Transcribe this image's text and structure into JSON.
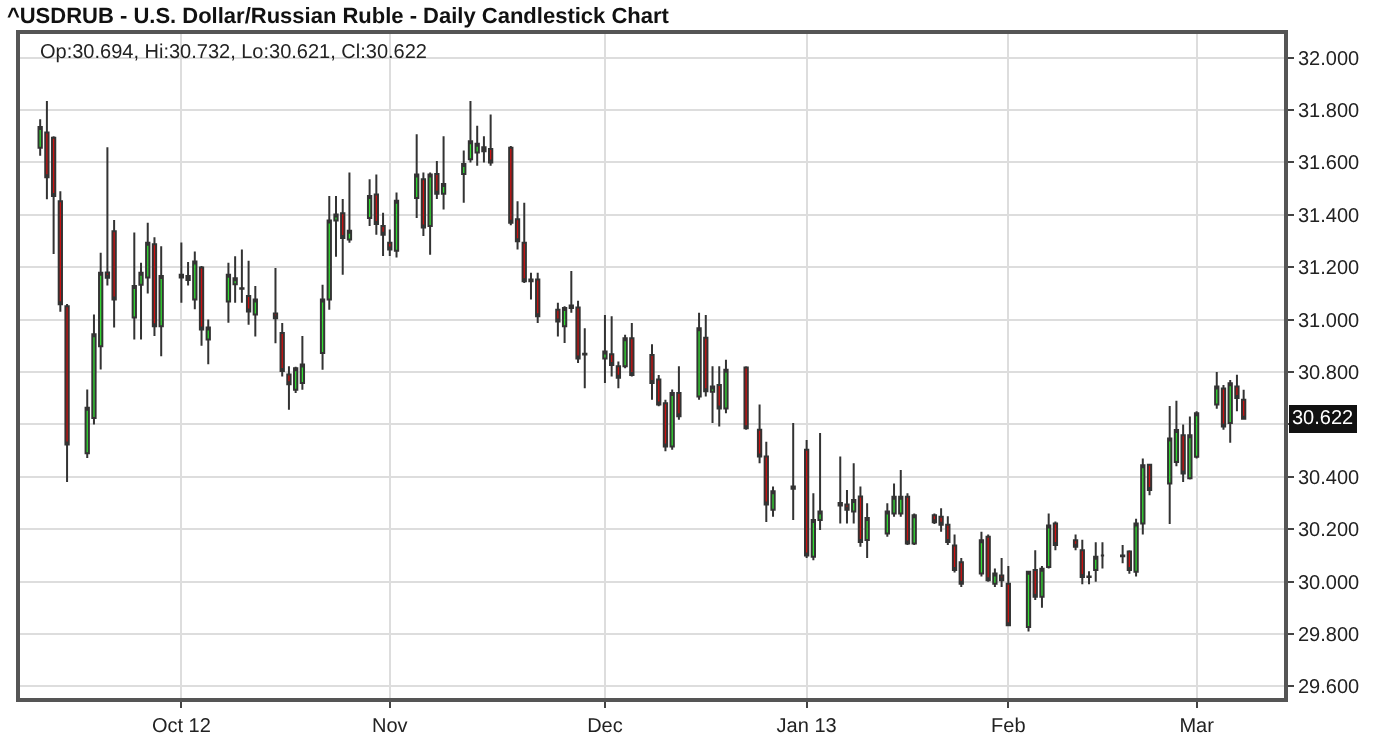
{
  "chart_data": {
    "type": "candlestick",
    "title": "^USDRUB - U.S. Dollar/Russian Ruble - Daily Candlestick Chart",
    "annotations": [
      "Op:30.694, Hi:30.732, Lo:30.621, Cl:30.622",
      {
        "text": "30.622",
        "x": "2013-03-08",
        "y": 30.622
      }
    ],
    "x": [
      "2012-09-10",
      "2012-09-11",
      "2012-09-12",
      "2012-09-13",
      "2012-09-14",
      "2012-09-17",
      "2012-09-18",
      "2012-09-19",
      "2012-09-20",
      "2012-09-21",
      "2012-09-24",
      "2012-09-25",
      "2012-09-26",
      "2012-09-27",
      "2012-09-28",
      "2012-10-01",
      "2012-10-02",
      "2012-10-03",
      "2012-10-04",
      "2012-10-05",
      "2012-10-08",
      "2012-10-09",
      "2012-10-10",
      "2012-10-11",
      "2012-10-12",
      "2012-10-15",
      "2012-10-16",
      "2012-10-17",
      "2012-10-18",
      "2012-10-19",
      "2012-10-22",
      "2012-10-23",
      "2012-10-24",
      "2012-10-25",
      "2012-10-26",
      "2012-10-29",
      "2012-10-30",
      "2012-10-31",
      "2012-11-01",
      "2012-11-02",
      "2012-11-05",
      "2012-11-06",
      "2012-11-07",
      "2012-11-08",
      "2012-11-09",
      "2012-11-12",
      "2012-11-13",
      "2012-11-14",
      "2012-11-15",
      "2012-11-16",
      "2012-11-19",
      "2012-11-20",
      "2012-11-21",
      "2012-11-22",
      "2012-11-23",
      "2012-11-26",
      "2012-11-27",
      "2012-11-28",
      "2012-11-29",
      "2012-11-30",
      "2012-12-03",
      "2012-12-04",
      "2012-12-05",
      "2012-12-06",
      "2012-12-07",
      "2012-12-10",
      "2012-12-11",
      "2012-12-12",
      "2012-12-13",
      "2012-12-14",
      "2012-12-17",
      "2012-12-18",
      "2012-12-19",
      "2012-12-20",
      "2012-12-21",
      "2012-12-24",
      "2012-12-26",
      "2012-12-27",
      "2012-12-28",
      "2012-12-31",
      "2013-01-02",
      "2013-01-03",
      "2013-01-04",
      "2013-01-07",
      "2013-01-08",
      "2013-01-09",
      "2013-01-10",
      "2013-01-11",
      "2013-01-14",
      "2013-01-15",
      "2013-01-16",
      "2013-01-17",
      "2013-01-18",
      "2013-01-21",
      "2013-01-22",
      "2013-01-23",
      "2013-01-24",
      "2013-01-25",
      "2013-01-28",
      "2013-01-29",
      "2013-01-30",
      "2013-01-31",
      "2013-02-01",
      "2013-02-04",
      "2013-02-05",
      "2013-02-06",
      "2013-02-07",
      "2013-02-08",
      "2013-02-11",
      "2013-02-12",
      "2013-02-13",
      "2013-02-14",
      "2013-02-15",
      "2013-02-18",
      "2013-02-19",
      "2013-02-20",
      "2013-02-21",
      "2013-02-22",
      "2013-02-25",
      "2013-02-26",
      "2013-02-27",
      "2013-02-28",
      "2013-03-01",
      "2013-03-04",
      "2013-03-05",
      "2013-03-06",
      "2013-03-07",
      "2013-03-08"
    ],
    "ohlc": [
      [
        31.656,
        31.765,
        31.625,
        31.735
      ],
      [
        31.714,
        31.834,
        31.459,
        31.543
      ],
      [
        31.694,
        31.7,
        31.25,
        31.472
      ],
      [
        31.452,
        31.49,
        31.03,
        31.059
      ],
      [
        31.051,
        31.06,
        30.38,
        30.523
      ],
      [
        30.49,
        30.733,
        30.472,
        30.664
      ],
      [
        30.625,
        31.02,
        30.6,
        30.944
      ],
      [
        30.898,
        31.255,
        30.81,
        31.179
      ],
      [
        31.18,
        31.658,
        31.13,
        31.16
      ],
      [
        31.337,
        31.38,
        30.97,
        31.077
      ],
      [
        31.008,
        31.332,
        30.924,
        31.128
      ],
      [
        31.133,
        31.217,
        30.924,
        31.179
      ],
      [
        31.161,
        31.37,
        31.1,
        31.293
      ],
      [
        31.288,
        31.314,
        30.937,
        30.975
      ],
      [
        30.975,
        31.28,
        30.86,
        31.166
      ],
      [
        31.171,
        31.294,
        31.064,
        31.161
      ],
      [
        31.166,
        31.22,
        31.13,
        31.151
      ],
      [
        31.077,
        31.26,
        31.04,
        31.222
      ],
      [
        31.199,
        31.205,
        30.9,
        30.962
      ],
      [
        30.924,
        31.0,
        30.83,
        30.97
      ],
      [
        31.069,
        31.217,
        30.988,
        31.171
      ],
      [
        31.135,
        31.242,
        31.064,
        31.158
      ],
      [
        31.118,
        31.268,
        31.064,
        31.12
      ],
      [
        31.09,
        31.225,
        30.98,
        31.031
      ],
      [
        31.02,
        31.128,
        30.936,
        31.077
      ],
      [
        31.023,
        31.197,
        30.91,
        31.005
      ],
      [
        30.949,
        30.987,
        30.783,
        30.804
      ],
      [
        30.791,
        30.822,
        30.656,
        30.753
      ],
      [
        30.732,
        30.82,
        30.72,
        30.814
      ],
      [
        30.758,
        30.937,
        30.732,
        30.829
      ],
      [
        30.873,
        31.133,
        30.809,
        31.077
      ],
      [
        31.077,
        31.472,
        31.038,
        31.378
      ],
      [
        31.378,
        31.472,
        31.24,
        31.401
      ],
      [
        31.406,
        31.46,
        31.171,
        31.311
      ],
      [
        31.306,
        31.561,
        31.293,
        31.339
      ],
      [
        31.388,
        31.536,
        31.357,
        31.472
      ],
      [
        31.477,
        31.554,
        31.324,
        31.365
      ],
      [
        31.357,
        31.408,
        31.243,
        31.324
      ],
      [
        31.293,
        31.344,
        31.243,
        31.268
      ],
      [
        31.263,
        31.485,
        31.237,
        31.454
      ],
      [
        31.464,
        31.707,
        31.388,
        31.554
      ],
      [
        31.536,
        31.561,
        31.319,
        31.352
      ],
      [
        31.357,
        31.561,
        31.248,
        31.554
      ],
      [
        31.556,
        31.605,
        31.46,
        31.48
      ],
      [
        31.48,
        31.7,
        31.42,
        31.518
      ],
      [
        31.556,
        31.645,
        31.446,
        31.594
      ],
      [
        31.612,
        31.834,
        31.6,
        31.681
      ],
      [
        31.638,
        31.74,
        31.587,
        31.671
      ],
      [
        31.658,
        31.7,
        31.6,
        31.643
      ],
      [
        31.651,
        31.783,
        31.587,
        31.6
      ],
      [
        31.656,
        31.663,
        31.36,
        31.37
      ],
      [
        31.383,
        31.452,
        31.268,
        31.299
      ],
      [
        31.293,
        31.446,
        31.14,
        31.146
      ],
      [
        31.153,
        31.179,
        31.077,
        31.146
      ],
      [
        31.153,
        31.179,
        30.987,
        31.013
      ],
      [
        31.038,
        31.064,
        30.936,
        30.993
      ],
      [
        30.975,
        31.051,
        30.911,
        31.044
      ],
      [
        31.044,
        31.186,
        31.026,
        31.054
      ],
      [
        31.046,
        31.072,
        30.834,
        30.852
      ],
      [
        30.87,
        30.967,
        30.738,
        30.867
      ],
      [
        30.852,
        31.018,
        30.758,
        30.878
      ],
      [
        30.868,
        31.013,
        30.783,
        30.827
      ],
      [
        30.822,
        30.84,
        30.738,
        30.778
      ],
      [
        30.822,
        30.942,
        30.814,
        30.929
      ],
      [
        30.929,
        30.987,
        30.783,
        30.789
      ],
      [
        30.865,
        30.906,
        30.694,
        30.758
      ],
      [
        30.771,
        30.789,
        30.669,
        30.676
      ],
      [
        30.681,
        30.694,
        30.498,
        30.516
      ],
      [
        30.516,
        30.733,
        30.503,
        30.72
      ],
      [
        30.72,
        30.822,
        30.618,
        30.631
      ],
      [
        30.707,
        31.026,
        30.694,
        30.967
      ],
      [
        30.931,
        31.018,
        30.707,
        30.727
      ],
      [
        30.725,
        30.822,
        30.605,
        30.745
      ],
      [
        30.75,
        30.822,
        30.592,
        30.661
      ],
      [
        30.661,
        30.847,
        30.643,
        30.809
      ],
      [
        30.817,
        30.822,
        30.58,
        30.585
      ],
      [
        30.58,
        30.676,
        30.452,
        30.478
      ],
      [
        30.478,
        30.534,
        30.228,
        30.294
      ],
      [
        30.274,
        30.363,
        30.248,
        30.345
      ],
      [
        30.363,
        30.605,
        30.235,
        30.355
      ],
      [
        30.503,
        30.541,
        30.09,
        30.1
      ],
      [
        30.095,
        30.337,
        30.082,
        30.235
      ],
      [
        30.235,
        30.567,
        30.197,
        30.268
      ],
      [
        30.3,
        30.478,
        30.222,
        30.291
      ],
      [
        30.294,
        30.35,
        30.222,
        30.274
      ],
      [
        30.268,
        30.452,
        30.222,
        30.312
      ],
      [
        30.325,
        30.363,
        30.133,
        30.151
      ],
      [
        30.159,
        30.299,
        30.09,
        30.243
      ],
      [
        30.184,
        30.299,
        30.171,
        30.268
      ],
      [
        30.26,
        30.375,
        30.248,
        30.324
      ],
      [
        30.26,
        30.426,
        30.248,
        30.324
      ],
      [
        30.324,
        30.337,
        30.14,
        30.146
      ],
      [
        30.146,
        30.26,
        30.14,
        30.253
      ],
      [
        30.253,
        30.26,
        30.22,
        30.227
      ],
      [
        30.248,
        30.28,
        30.19,
        30.217
      ],
      [
        30.217,
        30.25,
        30.14,
        30.151
      ],
      [
        30.138,
        30.18,
        30.035,
        30.044
      ],
      [
        30.074,
        30.09,
        29.98,
        29.992
      ],
      [
        30.031,
        30.19,
        30.02,
        30.158
      ],
      [
        30.171,
        30.18,
        30.0,
        30.005
      ],
      [
        29.992,
        30.05,
        29.98,
        30.031
      ],
      [
        30.023,
        30.09,
        29.98,
        30.005
      ],
      [
        29.992,
        30.06,
        29.83,
        29.834
      ],
      [
        29.827,
        30.04,
        29.81,
        30.038
      ],
      [
        30.044,
        30.12,
        29.93,
        29.942
      ],
      [
        29.942,
        30.06,
        29.9,
        30.049
      ],
      [
        30.056,
        30.26,
        30.05,
        30.214
      ],
      [
        30.222,
        30.23,
        30.12,
        30.14
      ],
      [
        30.158,
        30.18,
        30.12,
        30.133
      ],
      [
        30.12,
        30.16,
        29.99,
        30.018
      ],
      [
        30.02,
        30.04,
        29.99,
        30.018
      ],
      [
        30.044,
        30.15,
        30.0,
        30.095
      ],
      [
        30.1,
        30.15,
        30.05,
        30.1
      ],
      [
        30.1,
        30.14,
        30.07,
        30.097
      ],
      [
        30.115,
        30.12,
        30.03,
        30.044
      ],
      [
        30.038,
        30.24,
        30.02,
        30.222
      ],
      [
        30.222,
        30.47,
        30.18,
        30.444
      ],
      [
        30.446,
        30.45,
        30.33,
        30.35
      ],
      [
        30.375,
        30.67,
        30.22,
        30.546
      ],
      [
        30.457,
        30.69,
        30.44,
        30.579
      ],
      [
        30.559,
        30.6,
        30.38,
        30.413
      ],
      [
        30.395,
        30.63,
        30.39,
        30.559
      ],
      [
        30.477,
        30.65,
        30.47,
        30.643
      ],
      [
        30.676,
        30.8,
        30.66,
        30.745
      ],
      [
        30.737,
        30.75,
        30.58,
        30.592
      ],
      [
        30.605,
        30.77,
        30.53,
        30.757
      ],
      [
        30.745,
        30.79,
        30.65,
        30.701
      ],
      [
        30.694,
        30.732,
        30.621,
        30.622
      ]
    ],
    "xlim": [
      "2012-09-07",
      "2013-03-14"
    ],
    "xticks": [
      {
        "value": "2012-10-01",
        "label": "Oct 12"
      },
      {
        "value": "2012-11-01",
        "label": "Nov"
      },
      {
        "value": "2012-12-03",
        "label": "Dec"
      },
      {
        "value": "2013-01-02",
        "label": "Jan 13"
      },
      {
        "value": "2013-02-01",
        "label": "Feb"
      },
      {
        "value": "2013-03-01",
        "label": "Mar"
      }
    ],
    "ylim": [
      29.556,
      32.09
    ],
    "yticks": [
      {
        "value": 29.6,
        "label": "29.600"
      },
      {
        "value": 29.8,
        "label": "29.800"
      },
      {
        "value": 30.0,
        "label": "30.000"
      },
      {
        "value": 30.2,
        "label": "30.200"
      },
      {
        "value": 30.4,
        "label": "30.400"
      },
      {
        "value": 30.6,
        "label": null
      },
      {
        "value": 30.8,
        "label": "30.800"
      },
      {
        "value": 31.0,
        "label": "31.000"
      },
      {
        "value": 31.2,
        "label": "31.200"
      },
      {
        "value": 31.4,
        "label": "31.400"
      },
      {
        "value": 31.6,
        "label": "31.600"
      },
      {
        "value": 31.8,
        "label": "31.800"
      },
      {
        "value": 32.0,
        "label": "32.000"
      }
    ],
    "grid": true
  }
}
